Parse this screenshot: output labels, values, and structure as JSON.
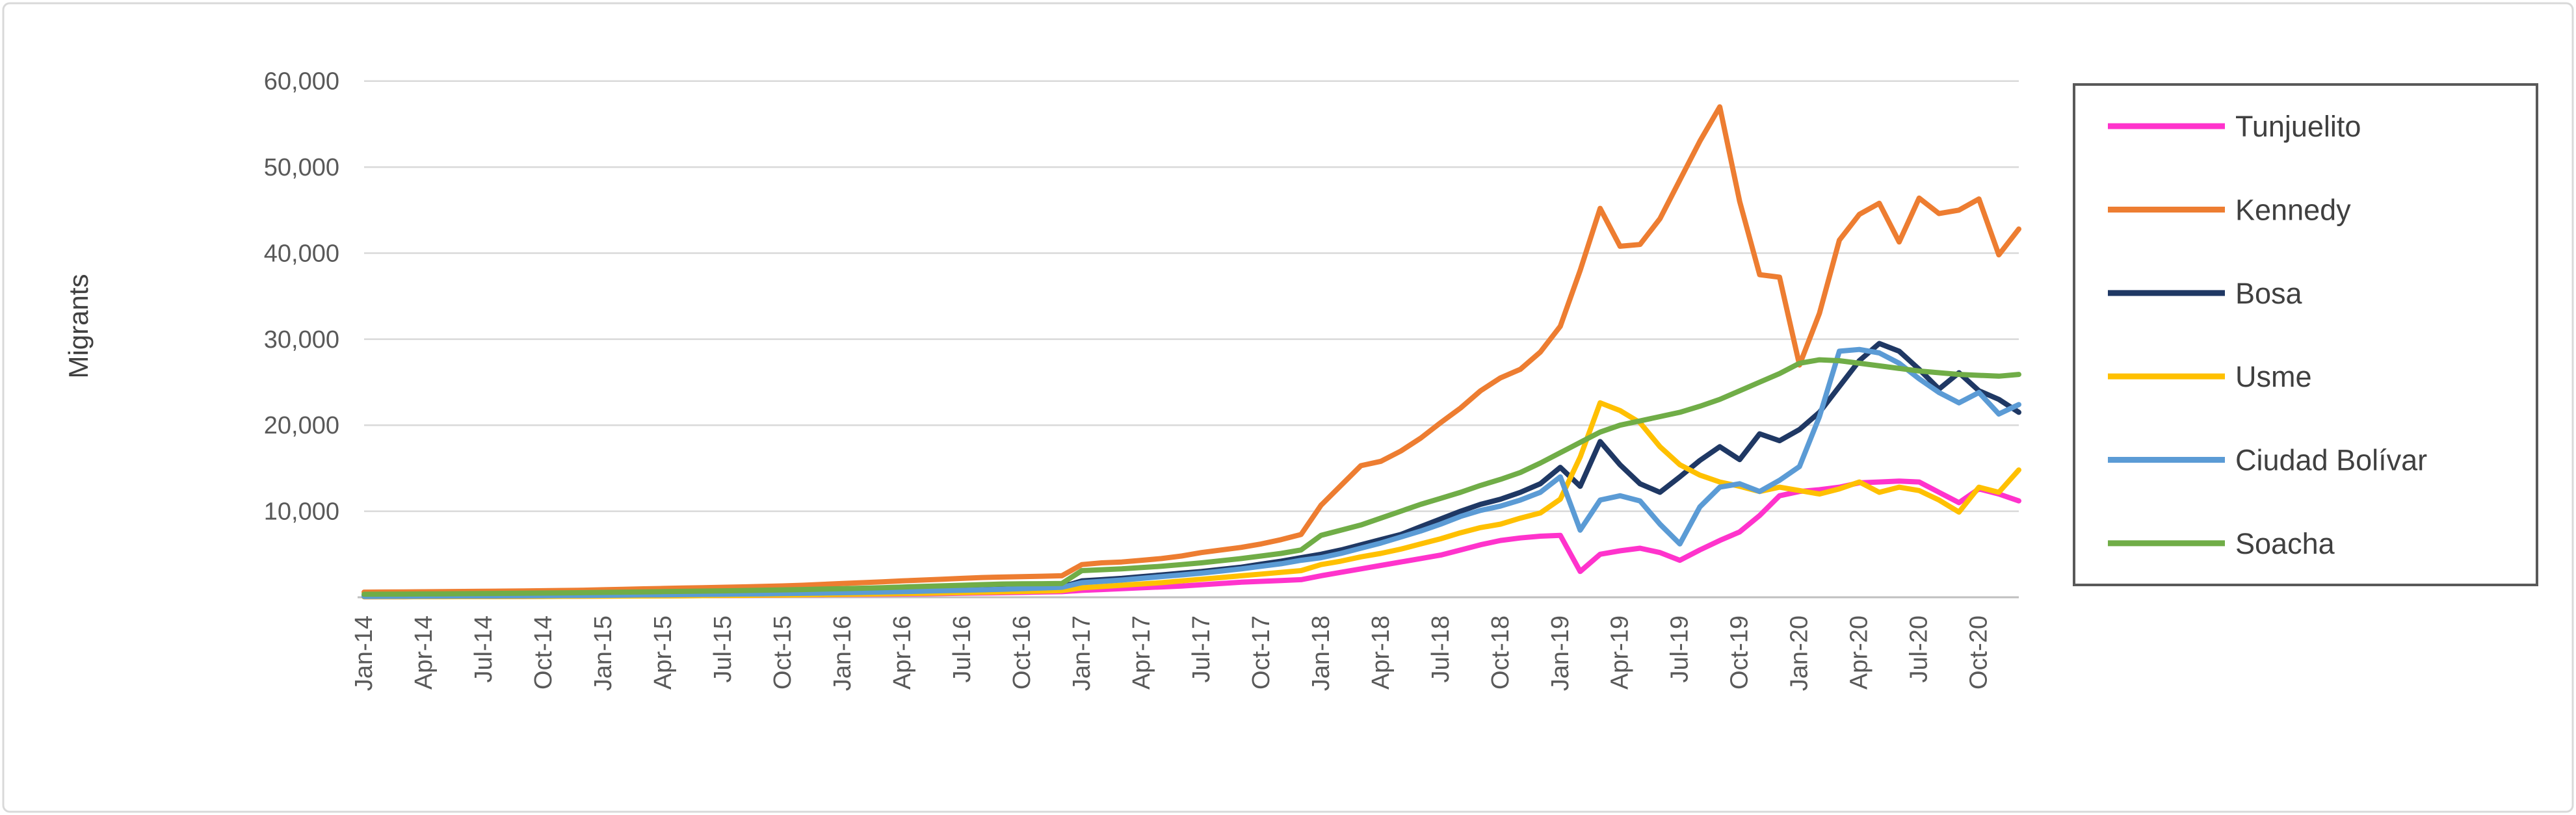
{
  "chart_data": {
    "type": "line",
    "title": "",
    "ylabel": "Migrants",
    "xlabel": "",
    "ylim": [
      0,
      63000
    ],
    "grid": "horizontal-only",
    "legend_position": "right",
    "y_ticks": [
      {
        "value": 10000,
        "label": "10,000"
      },
      {
        "value": 20000,
        "label": "20,000"
      },
      {
        "value": 30000,
        "label": "30,000"
      },
      {
        "value": 40000,
        "label": "40,000"
      },
      {
        "value": 50000,
        "label": "50,000"
      },
      {
        "value": 60000,
        "label": "60,000"
      }
    ],
    "x_tick_labels": [
      "Jan-14",
      "Apr-14",
      "Jul-14",
      "Oct-14",
      "Jan-15",
      "Apr-15",
      "Jul-15",
      "Oct-15",
      "Jan-16",
      "Apr-16",
      "Jul-16",
      "Oct-16",
      "Jan-17",
      "Apr-17",
      "Jul-17",
      "Oct-17",
      "Jan-18",
      "Apr-18",
      "Jul-18",
      "Oct-18",
      "Jan-19",
      "Apr-19",
      "Jul-19",
      "Oct-19",
      "Jan-20",
      "Apr-20",
      "Jul-20",
      "Oct-20"
    ],
    "x_tick_every": 3,
    "categories": [
      "Jan-14",
      "Feb-14",
      "Mar-14",
      "Apr-14",
      "May-14",
      "Jun-14",
      "Jul-14",
      "Aug-14",
      "Sep-14",
      "Oct-14",
      "Nov-14",
      "Dec-14",
      "Jan-15",
      "Feb-15",
      "Mar-15",
      "Apr-15",
      "May-15",
      "Jun-15",
      "Jul-15",
      "Aug-15",
      "Sep-15",
      "Oct-15",
      "Nov-15",
      "Dec-15",
      "Jan-16",
      "Feb-16",
      "Mar-16",
      "Apr-16",
      "May-16",
      "Jun-16",
      "Jul-16",
      "Aug-16",
      "Sep-16",
      "Oct-16",
      "Nov-16",
      "Dec-16",
      "Jan-17",
      "Feb-17",
      "Mar-17",
      "Apr-17",
      "May-17",
      "Jun-17",
      "Jul-17",
      "Aug-17",
      "Sep-17",
      "Oct-17",
      "Nov-17",
      "Dec-17",
      "Jan-18",
      "Feb-18",
      "Mar-18",
      "Apr-18",
      "May-18",
      "Jun-18",
      "Jul-18",
      "Aug-18",
      "Sep-18",
      "Oct-18",
      "Nov-18",
      "Dec-18",
      "Jan-19",
      "Feb-19",
      "Mar-19",
      "Apr-19",
      "May-19",
      "Jun-19",
      "Jul-19",
      "Aug-19",
      "Sep-19",
      "Oct-19",
      "Nov-19",
      "Dec-19",
      "Jan-20",
      "Feb-20",
      "Mar-20",
      "Apr-20",
      "May-20",
      "Jun-20",
      "Jul-20",
      "Aug-20",
      "Sep-20",
      "Oct-20",
      "Nov-20",
      "Dec-20"
    ],
    "series": [
      {
        "name": "Tunjuelito",
        "color": "#FF33CC",
        "values": [
          60,
          65,
          70,
          75,
          80,
          85,
          90,
          95,
          100,
          110,
          120,
          130,
          140,
          150,
          160,
          170,
          180,
          190,
          200,
          215,
          230,
          250,
          270,
          290,
          310,
          330,
          350,
          380,
          410,
          440,
          470,
          500,
          530,
          570,
          610,
          650,
          800,
          900,
          1000,
          1100,
          1200,
          1300,
          1450,
          1600,
          1750,
          1850,
          1950,
          2050,
          2500,
          2900,
          3300,
          3700,
          4100,
          4500,
          4900,
          5500,
          6100,
          6600,
          6900,
          7100,
          7200,
          3000,
          5000,
          5400,
          5700,
          5200,
          4300,
          5500,
          6600,
          7600,
          9500,
          11800,
          12300,
          12500,
          12800,
          13300,
          13400,
          13500,
          13400,
          12200,
          11000,
          12600,
          12000,
          11200
        ]
      },
      {
        "name": "Kennedy",
        "color": "#ED7D31",
        "values": [
          600,
          610,
          620,
          640,
          660,
          680,
          700,
          720,
          740,
          760,
          790,
          820,
          880,
          930,
          980,
          1030,
          1080,
          1120,
          1160,
          1210,
          1260,
          1320,
          1400,
          1500,
          1600,
          1700,
          1800,
          1900,
          2000,
          2100,
          2200,
          2300,
          2350,
          2400,
          2450,
          2500,
          3800,
          4000,
          4100,
          4300,
          4500,
          4800,
          5200,
          5500,
          5800,
          6200,
          6700,
          7300,
          10700,
          13000,
          15300,
          15800,
          17000,
          18500,
          20300,
          22000,
          24000,
          25500,
          26500,
          28500,
          31500,
          38000,
          45200,
          40800,
          41000,
          44000,
          48500,
          53000,
          57000,
          46000,
          37500,
          37200,
          27000,
          33000,
          41500,
          44500,
          45800,
          41300,
          46400,
          44600,
          45000,
          46300,
          39800,
          42800
        ]
      },
      {
        "name": "Bosa",
        "color": "#1F3864",
        "values": [
          150,
          160,
          170,
          180,
          190,
          200,
          210,
          220,
          235,
          250,
          265,
          280,
          300,
          320,
          340,
          360,
          380,
          400,
          420,
          445,
          470,
          500,
          530,
          560,
          600,
          640,
          680,
          730,
          780,
          830,
          880,
          930,
          990,
          1050,
          1120,
          1200,
          1900,
          2050,
          2200,
          2400,
          2600,
          2800,
          3000,
          3250,
          3500,
          3850,
          4200,
          4600,
          5000,
          5500,
          6100,
          6700,
          7300,
          8200,
          9100,
          10000,
          10800,
          11400,
          12200,
          13200,
          15100,
          12900,
          18100,
          15400,
          13200,
          12200,
          14000,
          15900,
          17500,
          16000,
          19000,
          18200,
          19500,
          21500,
          24500,
          27500,
          29500,
          28600,
          26500,
          24200,
          26100,
          24000,
          23000,
          21500
        ]
      },
      {
        "name": "Usme",
        "color": "#FFC000",
        "values": [
          50,
          55,
          60,
          65,
          70,
          75,
          80,
          85,
          90,
          100,
          110,
          120,
          130,
          140,
          150,
          160,
          175,
          190,
          205,
          220,
          240,
          260,
          285,
          310,
          340,
          370,
          400,
          430,
          460,
          500,
          540,
          580,
          620,
          670,
          720,
          780,
          1100,
          1250,
          1400,
          1550,
          1700,
          1900,
          2100,
          2300,
          2500,
          2700,
          2900,
          3100,
          3800,
          4200,
          4700,
          5100,
          5600,
          6200,
          6800,
          7500,
          8100,
          8500,
          9200,
          9800,
          11400,
          16300,
          22600,
          21700,
          20300,
          17500,
          15400,
          14200,
          13400,
          12900,
          12300,
          12800,
          12400,
          12000,
          12600,
          13400,
          12200,
          12800,
          12400,
          11300,
          9900,
          12800,
          12200,
          14800
        ]
      },
      {
        "name": "Ciudad Bolívar",
        "color": "#5B9BD5",
        "values": [
          100,
          105,
          110,
          120,
          130,
          140,
          150,
          160,
          170,
          185,
          200,
          215,
          230,
          250,
          270,
          290,
          310,
          330,
          350,
          375,
          400,
          430,
          460,
          490,
          530,
          570,
          610,
          660,
          710,
          760,
          810,
          870,
          930,
          1000,
          1080,
          1160,
          1700,
          1850,
          2000,
          2200,
          2400,
          2600,
          2800,
          3050,
          3300,
          3600,
          3900,
          4300,
          4600,
          5100,
          5700,
          6300,
          7000,
          7700,
          8500,
          9400,
          10100,
          10600,
          11300,
          12200,
          14000,
          7800,
          11300,
          11800,
          11200,
          8500,
          6200,
          10500,
          12800,
          13200,
          12300,
          13600,
          15200,
          21000,
          28600,
          28800,
          28400,
          27200,
          25400,
          23800,
          22600,
          23800,
          21300,
          22400
        ]
      },
      {
        "name": "Soacha",
        "color": "#70AD47",
        "values": [
          350,
          360,
          370,
          385,
          400,
          415,
          430,
          450,
          470,
          490,
          515,
          540,
          570,
          600,
          630,
          660,
          690,
          720,
          750,
          785,
          820,
          860,
          900,
          950,
          1000,
          1060,
          1120,
          1190,
          1260,
          1330,
          1400,
          1470,
          1540,
          1560,
          1580,
          1600,
          3100,
          3200,
          3300,
          3450,
          3600,
          3800,
          4000,
          4250,
          4500,
          4800,
          5100,
          5500,
          7200,
          7800,
          8400,
          9200,
          10000,
          10800,
          11500,
          12200,
          13000,
          13700,
          14500,
          15600,
          16800,
          18000,
          19200,
          20000,
          20500,
          21000,
          21500,
          22200,
          23000,
          24000,
          25000,
          26000,
          27200,
          27600,
          27500,
          27200,
          26900,
          26600,
          26300,
          26100,
          25900,
          25800,
          25700,
          25900
        ]
      }
    ],
    "style": {
      "grid_color": "#D9D9D9",
      "axis_line_color": "#BFBFBF",
      "tick_text_color": "#595959",
      "legend_text_color": "#404040",
      "legend_border_color": "#595959",
      "frame_border_color": "#D9D9D9",
      "background": "#FFFFFF",
      "line_width": 8
    }
  }
}
